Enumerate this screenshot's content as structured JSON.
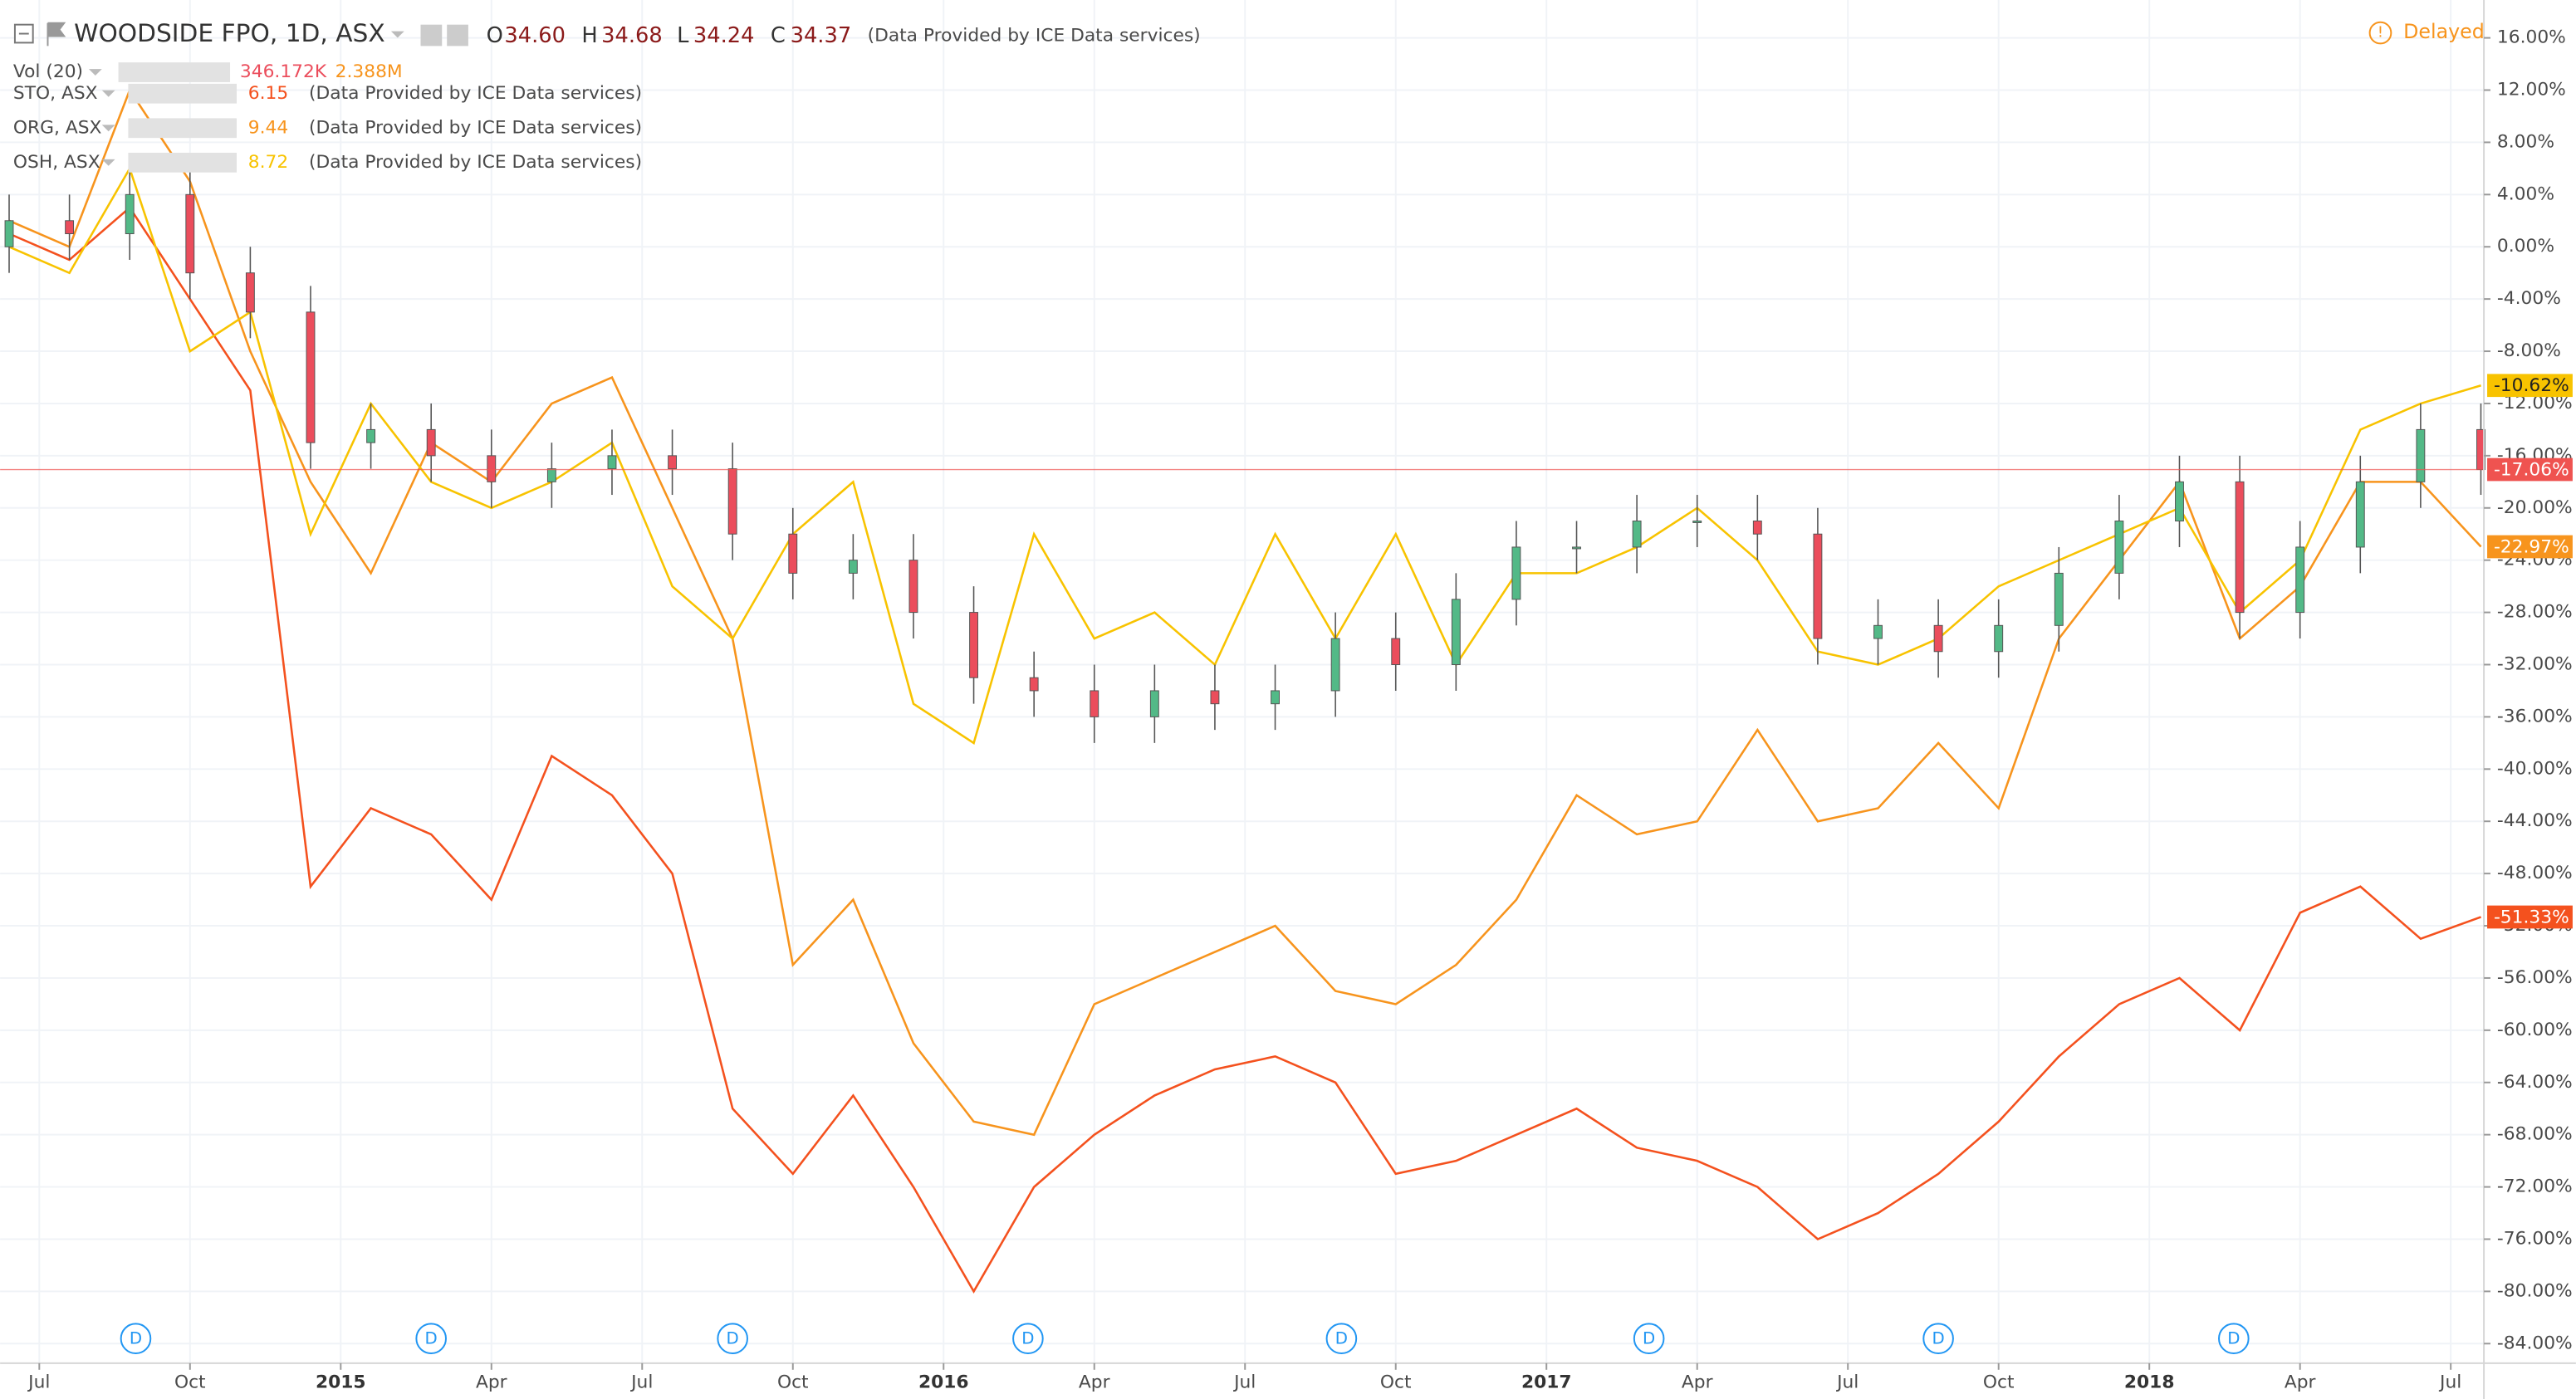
{
  "chart_data": {
    "type": "candlestick",
    "title": "WOODSIDE FPO, 1D, ASX",
    "ohlc_header": {
      "o_label": "O",
      "o": "34.60",
      "h_label": "H",
      "h": "34.68",
      "l_label": "L",
      "l": "34.24",
      "c_label": "C",
      "c": "34.37"
    },
    "source": "(Data Provided by ICE Data services)",
    "status": "Delayed",
    "volume": {
      "name": "Vol (20)",
      "value": "346.172K",
      "ma": "2.388M"
    },
    "last_label": "-17.06%",
    "xlim": [
      2014.435,
      2018.555
    ],
    "ylim": [
      -85.5,
      18.9
    ],
    "grid": true,
    "xticks": [
      {
        "value": 2014.5,
        "label": "Jul"
      },
      {
        "value": 2014.75,
        "label": "Oct"
      },
      2015,
      {
        "value": 2015.25,
        "label": "Apr"
      },
      {
        "value": 2015.5,
        "label": "Jul"
      },
      {
        "value": 2015.75,
        "label": "Oct"
      },
      2016,
      {
        "value": 2016.25,
        "label": "Apr"
      },
      {
        "value": 2016.5,
        "label": "Jul"
      },
      {
        "value": 2016.75,
        "label": "Oct"
      },
      2017,
      {
        "value": 2017.25,
        "label": "Apr"
      },
      {
        "value": 2017.5,
        "label": "Jul"
      },
      {
        "value": 2017.75,
        "label": "Oct"
      },
      2018,
      {
        "value": 2018.25,
        "label": "Apr"
      },
      {
        "value": 2018.5,
        "label": "Jul"
      }
    ],
    "yticks": [
      {
        "value": 16,
        "label": "16.00%"
      },
      {
        "value": 12,
        "label": "12.00%"
      },
      {
        "value": 8,
        "label": "8.00%"
      },
      {
        "value": 4,
        "label": "4.00%"
      },
      {
        "value": 0,
        "label": "0.00%"
      },
      {
        "value": -4,
        "label": "-4.00%"
      },
      {
        "value": -8,
        "label": "-8.00%"
      },
      {
        "value": -12,
        "label": "-12.00%"
      },
      {
        "value": -16,
        "label": "-16.00%"
      },
      {
        "value": -20,
        "label": "-20.00%"
      },
      {
        "value": -24,
        "label": "-24.00%"
      },
      {
        "value": -28,
        "label": "-28.00%"
      },
      {
        "value": -32,
        "label": "-32.00%"
      },
      {
        "value": -36,
        "label": "-36.00%"
      },
      {
        "value": -40,
        "label": "-40.00%"
      },
      {
        "value": -44,
        "label": "-44.00%"
      },
      {
        "value": -48,
        "label": "-48.00%"
      },
      {
        "value": -52,
        "label": "-52.00%"
      },
      {
        "value": -56,
        "label": "-56.00%"
      },
      {
        "value": -60,
        "label": "-60.00%"
      },
      {
        "value": -64,
        "label": "-64.00%"
      },
      {
        "value": -68,
        "label": "-68.00%"
      },
      {
        "value": -72,
        "label": "-72.00%"
      },
      {
        "value": -76,
        "label": "-76.00%"
      },
      {
        "value": -80,
        "label": "-80.00%"
      },
      {
        "value": -84,
        "label": "-84.00%"
      }
    ],
    "x": [
      2014.45,
      2014.55,
      2014.65,
      2014.75,
      2014.85,
      2014.95,
      2015.05,
      2015.15,
      2015.25,
      2015.35,
      2015.45,
      2015.55,
      2015.65,
      2015.75,
      2015.85,
      2015.95,
      2016.05,
      2016.15,
      2016.25,
      2016.35,
      2016.45,
      2016.55,
      2016.65,
      2016.75,
      2016.85,
      2016.95,
      2017.05,
      2017.15,
      2017.25,
      2017.35,
      2017.45,
      2017.55,
      2017.65,
      2017.75,
      2017.85,
      2017.95,
      2018.05,
      2018.15,
      2018.25,
      2018.35,
      2018.45,
      2018.55
    ],
    "up_color": "#53b987",
    "down_color": "#eb4d5c",
    "last_color": "#ef5350",
    "open": [
      0,
      2,
      1,
      4,
      -2,
      -5,
      -15,
      -14,
      -16,
      -18,
      -17,
      -16,
      -17,
      -22,
      -25,
      -24,
      -28,
      -33,
      -34,
      -36,
      -34,
      -35,
      -34,
      -30,
      -32,
      -27,
      -23,
      -23,
      -21,
      -21,
      -22,
      -30,
      -29,
      -31,
      -29,
      -25,
      -21,
      -18,
      -28,
      -23,
      -18,
      -14
    ],
    "high": [
      4,
      4,
      6,
      6,
      0,
      -3,
      -12,
      -12,
      -14,
      -15,
      -14,
      -14,
      -15,
      -20,
      -22,
      -22,
      -26,
      -31,
      -32,
      -32,
      -32,
      -32,
      -28,
      -28,
      -25,
      -21,
      -21,
      -19,
      -19,
      -19,
      -20,
      -27,
      -27,
      -27,
      -23,
      -19,
      -16,
      -16,
      -21,
      -16,
      -12,
      -12
    ],
    "low": [
      -2,
      -1,
      -1,
      -4,
      -7,
      -17,
      -17,
      -18,
      -20,
      -20,
      -19,
      -19,
      -24,
      -27,
      -27,
      -30,
      -35,
      -36,
      -38,
      -38,
      -37,
      -37,
      -36,
      -34,
      -34,
      -29,
      -25,
      -25,
      -23,
      -24,
      -32,
      -32,
      -33,
      -33,
      -31,
      -27,
      -23,
      -30,
      -30,
      -25,
      -20,
      -19
    ],
    "close": [
      2,
      1,
      4,
      -2,
      -5,
      -15,
      -14,
      -16,
      -18,
      -17,
      -16,
      -17,
      -22,
      -25,
      -24,
      -28,
      -33,
      -34,
      -36,
      -34,
      -35,
      -34,
      -30,
      -32,
      -27,
      -23,
      -23,
      -21,
      -21,
      -22,
      -30,
      -29,
      -31,
      -29,
      -25,
      -21,
      -18,
      -28,
      -23,
      -18,
      -14,
      -17.06
    ],
    "series": [
      {
        "name": "STO, ASX",
        "color": "#f4511e",
        "last": "6.15",
        "last_label": "-51.33%",
        "values": [
          1,
          -1,
          3,
          -4,
          -11,
          -49,
          -43,
          -45,
          -50,
          -39,
          -42,
          -48,
          -66,
          -71,
          -65,
          -72,
          -80,
          -72,
          -68,
          -65,
          -63,
          -62,
          -64,
          -71,
          -70,
          -68,
          -66,
          -69,
          -70,
          -72,
          -76,
          -74,
          -71,
          -67,
          -62,
          -58,
          -56,
          -60,
          -51,
          -49,
          -53,
          -51.33
        ]
      },
      {
        "name": "ORG, ASX",
        "color": "#f7941d",
        "last": "9.44",
        "last_label": "-22.97%",
        "values": [
          2,
          0,
          12,
          5,
          -8,
          -18,
          -25,
          -15,
          -18,
          -12,
          -10,
          -20,
          -30,
          -55,
          -50,
          -61,
          -67,
          -68,
          -58,
          -56,
          -54,
          -52,
          -57,
          -58,
          -55,
          -50,
          -42,
          -45,
          -44,
          -37,
          -44,
          -43,
          -38,
          -43,
          -30,
          -24,
          -18,
          -30,
          -26,
          -18,
          -18,
          -22.97
        ]
      },
      {
        "name": "OSH, ASX",
        "color": "#f8c300",
        "last": "8.72",
        "last_label": "-10.62%",
        "values": [
          0,
          -2,
          6,
          -8,
          -5,
          -22,
          -12,
          -18,
          -20,
          -18,
          -15,
          -26,
          -30,
          -22,
          -18,
          -35,
          -38,
          -22,
          -30,
          -28,
          -32,
          -22,
          -30,
          -22,
          -32,
          -25,
          -25,
          -23,
          -20,
          -24,
          -31,
          -32,
          -30,
          -26,
          -24,
          -22,
          -20,
          -28,
          -24,
          -14,
          -12,
          -10.62
        ]
      }
    ],
    "events": {
      "label": "D",
      "x": [
        2014.66,
        2015.15,
        2015.65,
        2016.14,
        2016.66,
        2017.17,
        2017.65,
        2018.14
      ]
    }
  }
}
